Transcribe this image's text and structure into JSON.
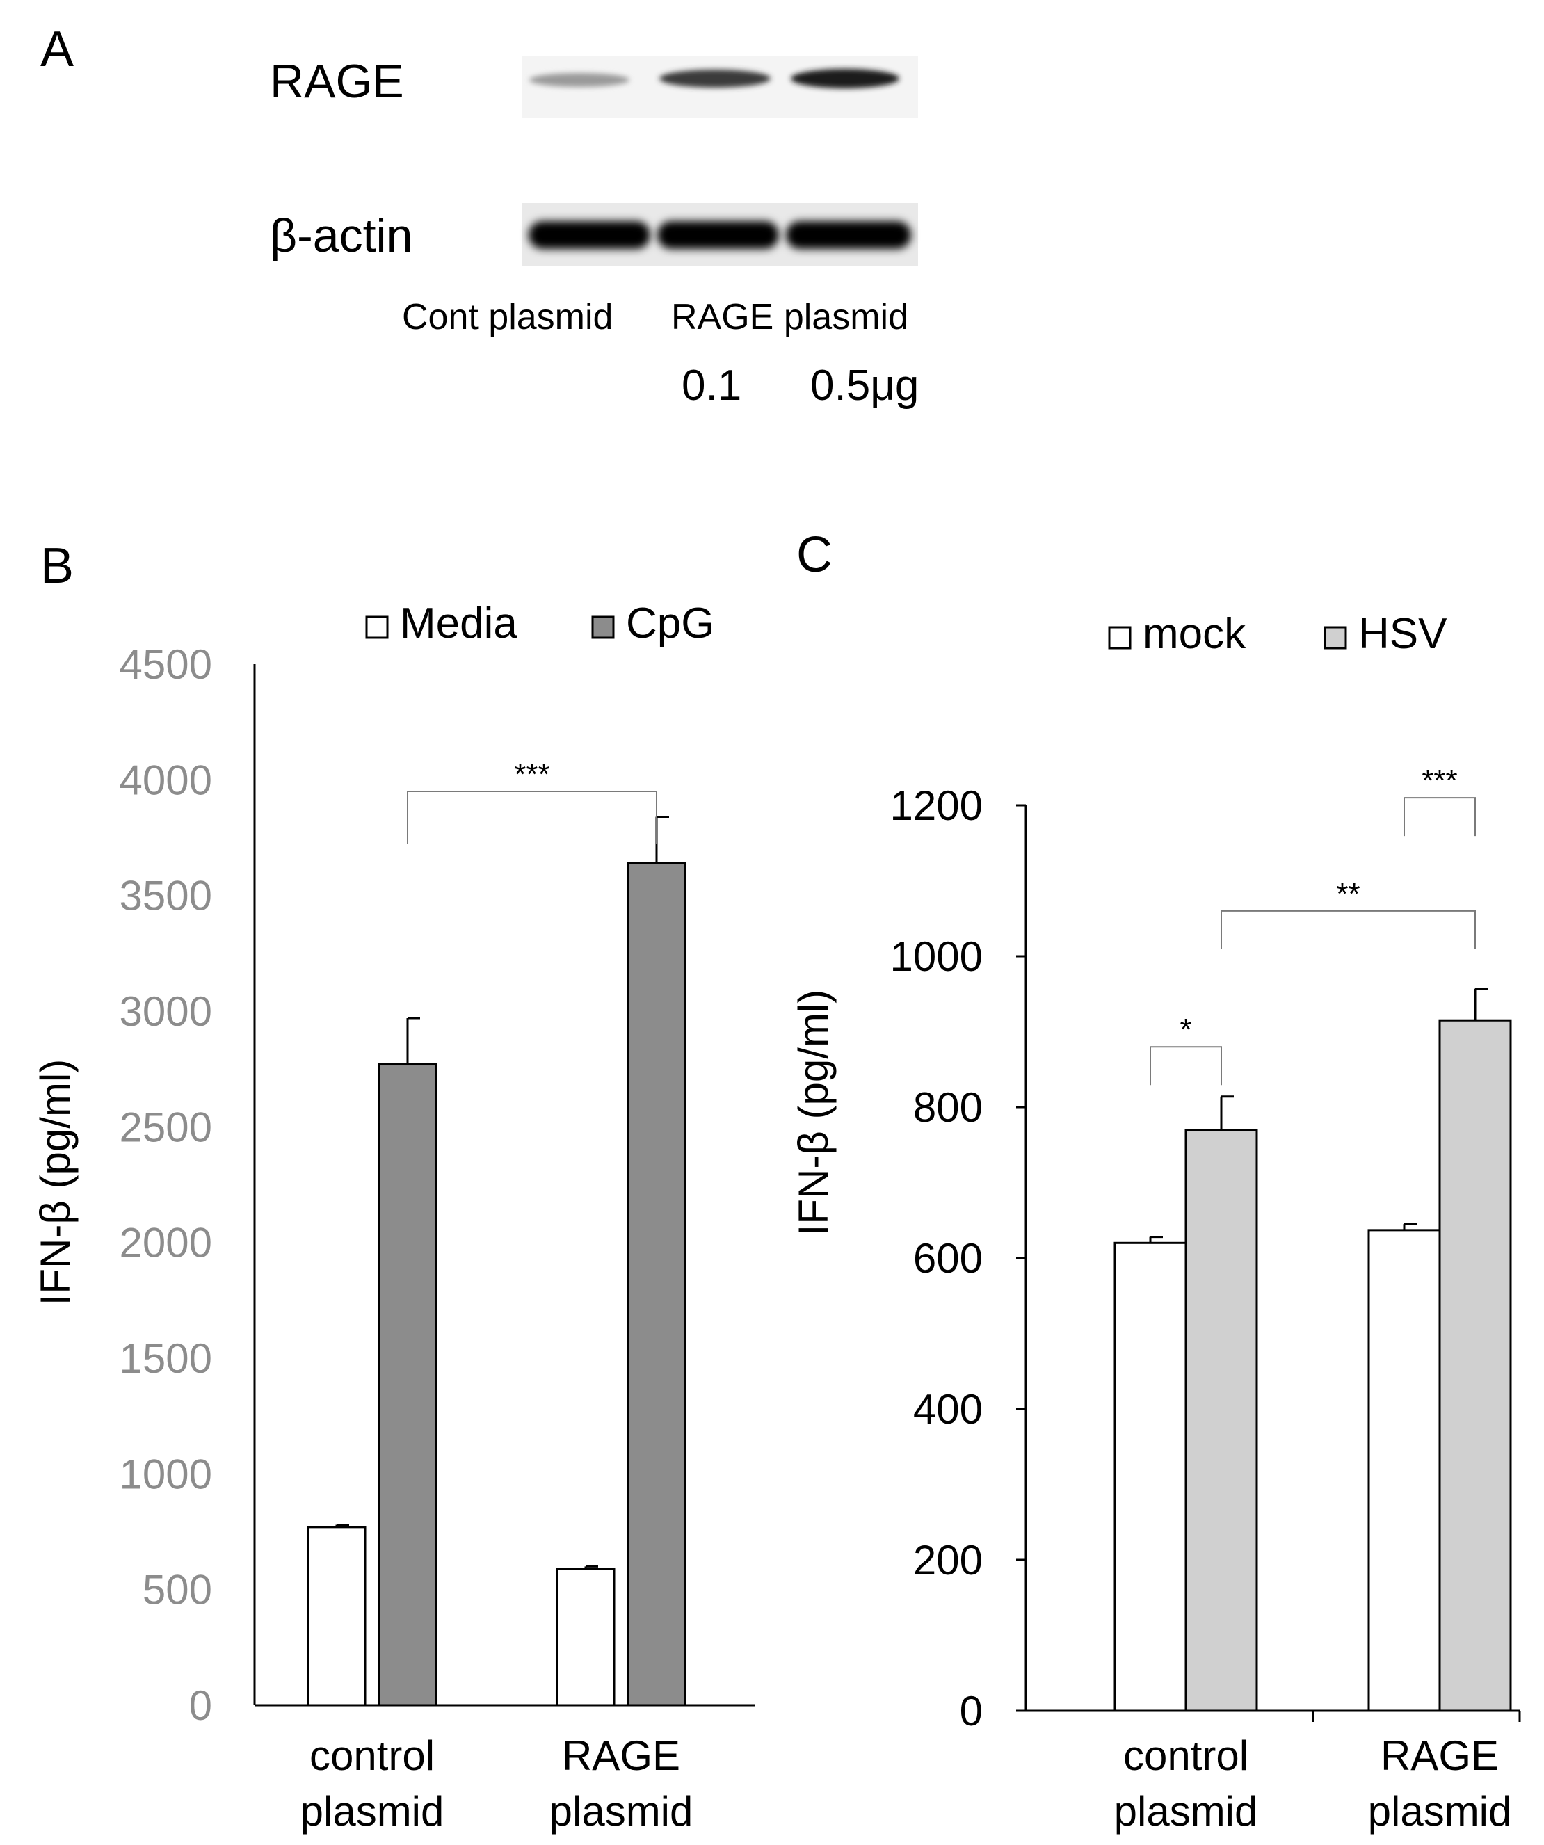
{
  "panel_a": {
    "label": "A",
    "row_labels": [
      "RAGE",
      "β-actin"
    ],
    "bottom_labels": [
      "Cont plasmid",
      "RAGE plasmid"
    ],
    "doses": [
      "0.1",
      "0.5μg"
    ]
  },
  "chart_data": [
    {
      "panel": "B",
      "type": "bar",
      "categories": [
        [
          "control",
          "plasmid"
        ],
        [
          "RAGE",
          "plasmid"
        ]
      ],
      "series": [
        {
          "name": "Media",
          "values": [
            770,
            590
          ],
          "errors": [
            10,
            10
          ],
          "color": "#ffffff"
        },
        {
          "name": "CpG",
          "values": [
            2770,
            3640
          ],
          "errors": [
            200,
            200
          ],
          "color": "#8c8c8c"
        }
      ],
      "ylabel": "IFN-β (pg/ml)",
      "ylim": [
        0,
        4500
      ],
      "yticks": [
        0,
        500,
        1000,
        1500,
        2000,
        2500,
        3000,
        3500,
        4000,
        4500
      ],
      "tick_color": "#8c8c8c",
      "legend_position": "top",
      "annotations": [
        {
          "text": "***",
          "from": [
            0,
            1
          ],
          "to": [
            1,
            1
          ],
          "y": 3950
        }
      ]
    },
    {
      "panel": "C",
      "type": "bar",
      "categories": [
        [
          "control",
          "plasmid"
        ],
        [
          "RAGE",
          "plasmid"
        ]
      ],
      "series": [
        {
          "name": "mock",
          "values": [
            620,
            637
          ],
          "errors": [
            8,
            8
          ],
          "color": "#ffffff"
        },
        {
          "name": "HSV",
          "values": [
            770,
            915
          ],
          "errors": [
            44,
            42
          ],
          "color": "#d0d0d0"
        }
      ],
      "ylabel": "IFN-β (pg/ml)",
      "ylim": [
        0,
        1200
      ],
      "yticks": [
        0,
        200,
        400,
        600,
        800,
        1000,
        1200
      ],
      "legend_position": "top",
      "annotations": [
        {
          "text": "*",
          "from": [
            0,
            0
          ],
          "to": [
            0,
            1
          ],
          "y": 880
        },
        {
          "text": "**",
          "from": [
            0,
            1
          ],
          "to": [
            1,
            1
          ],
          "y": 1060
        },
        {
          "text": "***",
          "from": [
            1,
            0
          ],
          "to": [
            1,
            1
          ],
          "y": 1210
        }
      ]
    }
  ]
}
